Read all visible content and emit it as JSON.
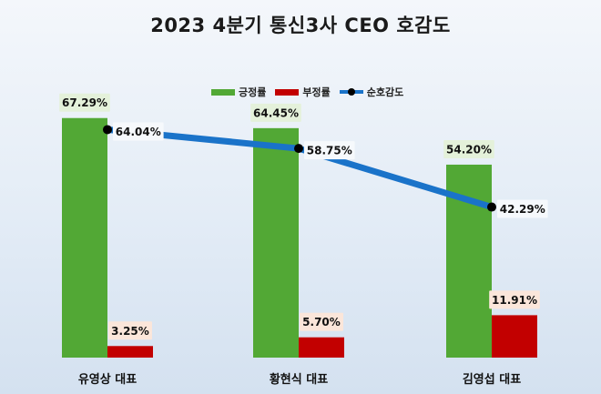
{
  "title": "2023 4분기 통신3사 CEO 호감도",
  "colors": {
    "positive": "#52a835",
    "negative": "#c20000",
    "line": "#1a73c9",
    "marker": "#000000"
  },
  "legend": [
    {
      "label": "긍정률",
      "kind": "bar",
      "color": "#52a835"
    },
    {
      "label": "부정률",
      "kind": "bar",
      "color": "#c20000"
    },
    {
      "label": "순호감도",
      "kind": "line",
      "color": "#1a73c9"
    }
  ],
  "chart_data": {
    "type": "bar",
    "title": "2023 4분기 통신3사 CEO 호감도",
    "categories": [
      "유영상 대표",
      "황현식 대표",
      "김영섭 대표"
    ],
    "series": [
      {
        "name": "긍정률",
        "type": "bar",
        "values": [
          67.29,
          64.45,
          54.2
        ],
        "labels": [
          "67.29%",
          "64.45%",
          "54.20%"
        ]
      },
      {
        "name": "부정률",
        "type": "bar",
        "values": [
          3.25,
          5.7,
          11.91
        ],
        "labels": [
          "3.25%",
          "5.70%",
          "11.91%"
        ]
      },
      {
        "name": "순호감도",
        "type": "line",
        "values": [
          64.04,
          58.75,
          42.29
        ],
        "labels": [
          "64.04%",
          "58.75%",
          "42.29%"
        ]
      }
    ],
    "ylim": [
      0,
      80
    ],
    "legend_position": "top-center",
    "grid": false
  }
}
